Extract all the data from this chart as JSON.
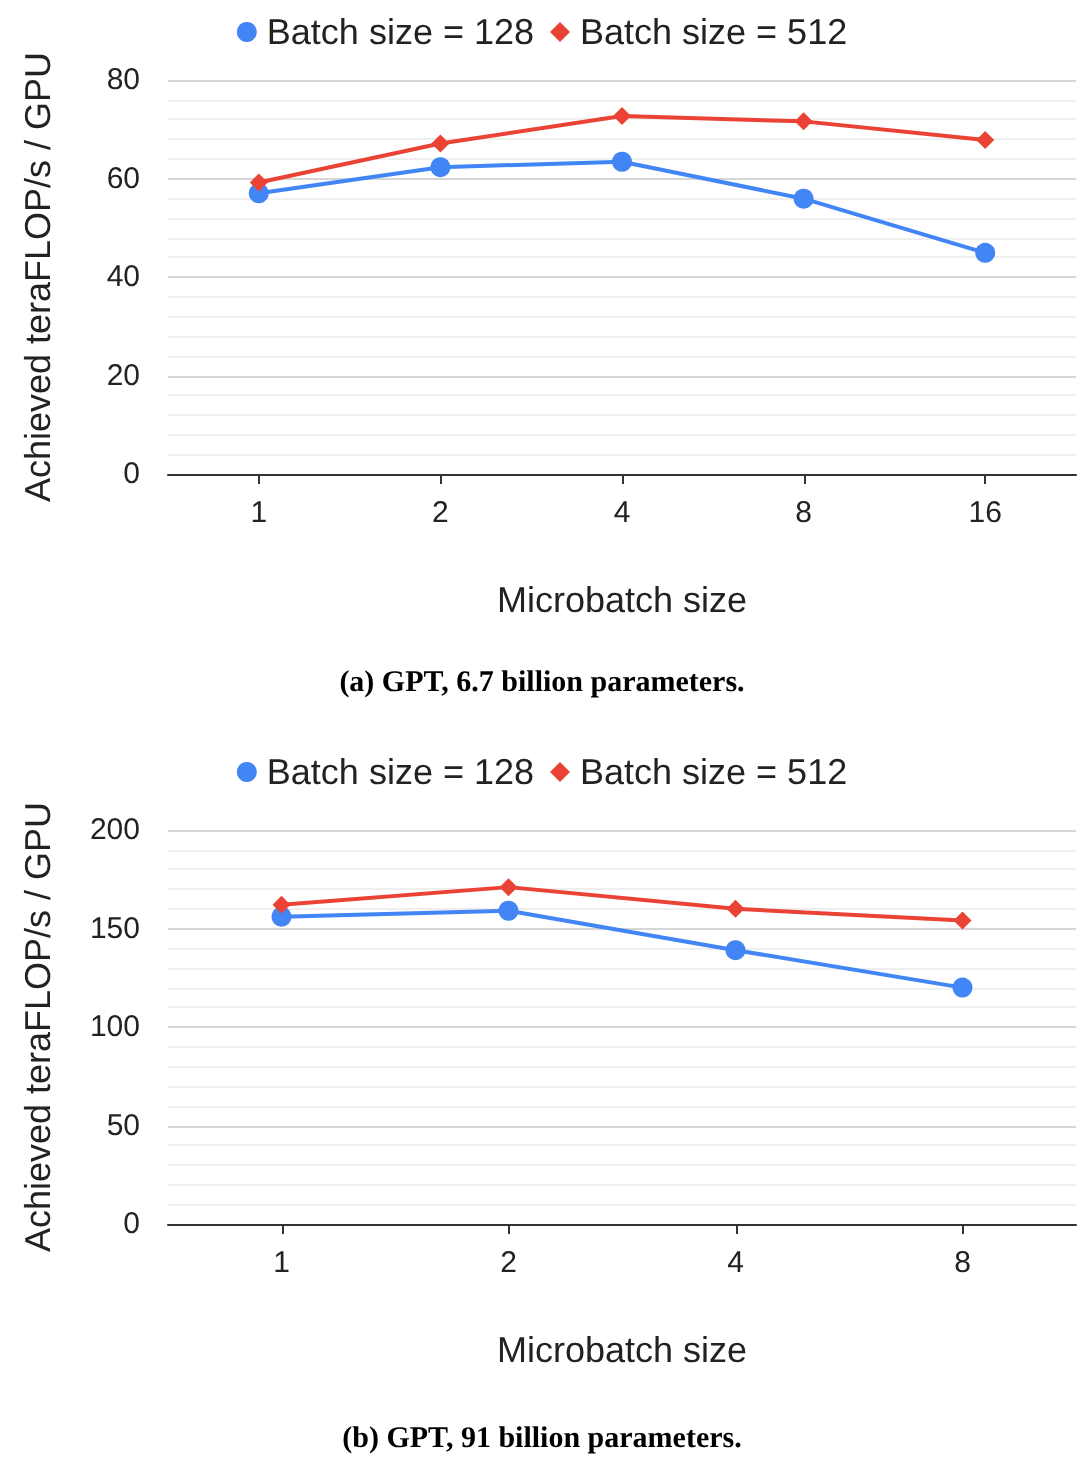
{
  "chart_data": [
    {
      "type": "line",
      "title": "(a) GPT, 6.7 billion parameters.",
      "xlabel": "Microbatch size",
      "ylabel": "Achieved teraFLOP/s / GPU",
      "categories": [
        "1",
        "2",
        "4",
        "8",
        "16"
      ],
      "series": [
        {
          "name": "Batch size = 128",
          "color": "#4285f4",
          "marker": "circle",
          "values": [
            57.0,
            62.3,
            63.4,
            55.9,
            44.9
          ]
        },
        {
          "name": "Batch size = 512",
          "color": "#ea4335",
          "marker": "diamond",
          "values": [
            59.2,
            67.1,
            72.7,
            71.6,
            67.8
          ]
        }
      ],
      "ylim": [
        0,
        80
      ],
      "yticks": [
        0,
        20,
        40,
        60,
        80
      ],
      "grid": "y",
      "legend": "top"
    },
    {
      "type": "line",
      "title": "(b) GPT, 91 billion parameters.",
      "xlabel": "Microbatch size",
      "ylabel": "Achieved teraFLOP/s / GPU",
      "categories": [
        "1",
        "2",
        "4",
        "8"
      ],
      "series": [
        {
          "name": "Batch size = 128",
          "color": "#4285f4",
          "marker": "circle",
          "values": [
            156,
            159,
            139,
            120
          ]
        },
        {
          "name": "Batch size = 512",
          "color": "#ea4335",
          "marker": "diamond",
          "values": [
            162,
            171,
            160,
            154
          ]
        }
      ],
      "ylim": [
        0,
        200
      ],
      "yticks": [
        0,
        50,
        100,
        150,
        200
      ],
      "grid": "y",
      "legend": "top"
    }
  ]
}
